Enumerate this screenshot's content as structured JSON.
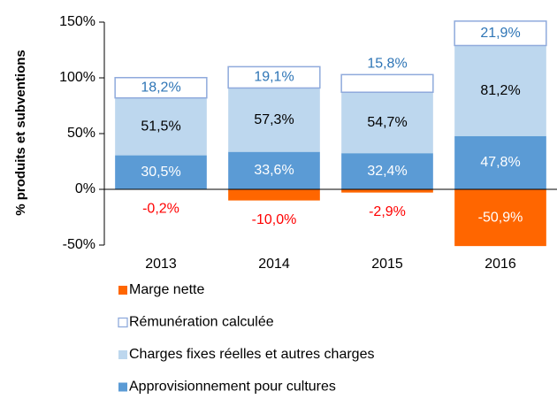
{
  "chart_data": {
    "type": "stacked_bar",
    "y_axis_label": "% produits et subventions",
    "categories": [
      "2013",
      "2014",
      "2015",
      "2016"
    ],
    "series": [
      {
        "name": "Approvisionnement pour cultures",
        "color": "#5b9bd5",
        "label_color": "#ffffff",
        "values": [
          30.5,
          33.6,
          32.4,
          47.8
        ],
        "value_labels": [
          "30,5%",
          "33,6%",
          "32,4%",
          "47,8%"
        ]
      },
      {
        "name": "Charges fixes réelles et autres charges",
        "color": "#bdd7ee",
        "label_color": "#000000",
        "values": [
          51.5,
          57.3,
          54.7,
          81.2
        ],
        "value_labels": [
          "51,5%",
          "57,3%",
          "54,7%",
          "81,2%"
        ]
      },
      {
        "name": "Rémunération calculée",
        "color": "#ffffff",
        "border": "#8faadc",
        "label_color": "#2e75b6",
        "values": [
          18.2,
          19.1,
          15.8,
          21.9
        ],
        "value_labels": [
          "18,2%",
          "19,1%",
          "15,8%",
          "21,9%"
        ]
      },
      {
        "name": "Marge nette",
        "color": "#ff6600",
        "label_colors": [
          "#ff0000",
          "#ff0000",
          "#ff0000",
          "#ffffff"
        ],
        "values": [
          -0.2,
          -10.0,
          -2.9,
          -50.9
        ],
        "value_labels": [
          "-0,2%",
          "-10,0%",
          "-2,9%",
          "-50,9%"
        ]
      }
    ],
    "legend_order": [
      3,
      2,
      1,
      0
    ],
    "ylim": [
      -50,
      150
    ],
    "yticks": [
      {
        "value": -50,
        "label": "-50%"
      },
      {
        "value": 0,
        "label": "0%"
      },
      {
        "value": 50,
        "label": "50%"
      },
      {
        "value": 100,
        "label": "100%"
      },
      {
        "value": 150,
        "label": "150%"
      }
    ]
  }
}
